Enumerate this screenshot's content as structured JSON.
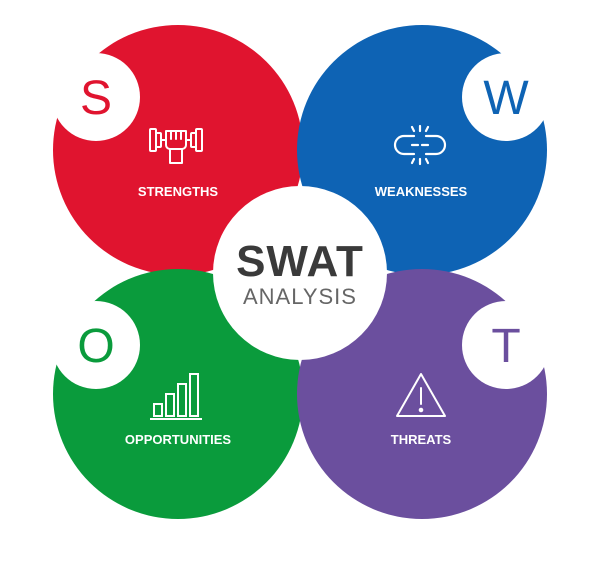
{
  "center": {
    "title": "SWAT",
    "subtitle": "ANALYSIS"
  },
  "quadrants": [
    {
      "key": "strengths",
      "letter": "S",
      "label": "STRENGTHS",
      "color": "#e0142f",
      "icon": "dumbbell-fist-icon"
    },
    {
      "key": "weaknesses",
      "letter": "W",
      "label": "WEAKNESSES",
      "color": "#0e63b4",
      "icon": "broken-link-icon"
    },
    {
      "key": "opportunities",
      "letter": "O",
      "label": "OPPORTUNITIES",
      "color": "#0a9b3c",
      "icon": "bar-chart-icon"
    },
    {
      "key": "threats",
      "letter": "T",
      "label": "THREATS",
      "color": "#6b4f9e",
      "icon": "warning-triangle-icon"
    }
  ]
}
